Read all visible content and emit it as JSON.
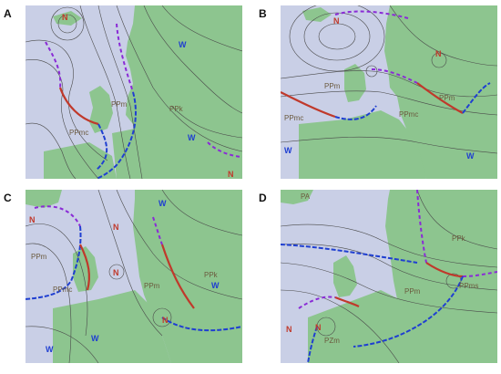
{
  "panels": [
    {
      "letter": "A",
      "air_masses": [
        "PPm",
        "PPk",
        "PPmc"
      ],
      "pressure_marks": [
        {
          "kind": "N",
          "color": "#c0392b"
        },
        {
          "kind": "W",
          "color": "#1f3fd1"
        },
        {
          "kind": "W",
          "color": "#1f3fd1"
        },
        {
          "kind": "N",
          "color": "#c0392b"
        }
      ]
    },
    {
      "letter": "B",
      "air_masses": [
        "PPm",
        "PPmc",
        "PPm",
        "PPmc"
      ],
      "pressure_marks": [
        {
          "kind": "N",
          "color": "#c0392b"
        },
        {
          "kind": "N",
          "color": "#c0392b"
        },
        {
          "kind": "W",
          "color": "#1f3fd1"
        },
        {
          "kind": "W",
          "color": "#1f3fd1"
        }
      ]
    },
    {
      "letter": "C",
      "air_masses": [
        "PPm",
        "PPmc",
        "PPm",
        "PPk"
      ],
      "pressure_marks": [
        {
          "kind": "N",
          "color": "#c0392b"
        },
        {
          "kind": "W",
          "color": "#1f3fd1"
        },
        {
          "kind": "N",
          "color": "#c0392b"
        },
        {
          "kind": "N",
          "color": "#c0392b"
        },
        {
          "kind": "W",
          "color": "#1f3fd1"
        },
        {
          "kind": "N",
          "color": "#c0392b"
        },
        {
          "kind": "W",
          "color": "#1f3fd1"
        },
        {
          "kind": "W",
          "color": "#1f3fd1"
        }
      ]
    },
    {
      "letter": "D",
      "air_masses": [
        "PA",
        "PPk",
        "PPm",
        "PPms",
        "PZm"
      ],
      "pressure_marks": [
        {
          "kind": "N",
          "color": "#c0392b"
        },
        {
          "kind": "N",
          "color": "#c0392b"
        }
      ]
    }
  ],
  "colors": {
    "sea": "#c9cfe6",
    "land": "#8dc58f",
    "isobar": "#4a4a4a",
    "cold_front": "#1f3fd1",
    "warm_front": "#c0392b",
    "occlusion": "#8a2bd6"
  }
}
